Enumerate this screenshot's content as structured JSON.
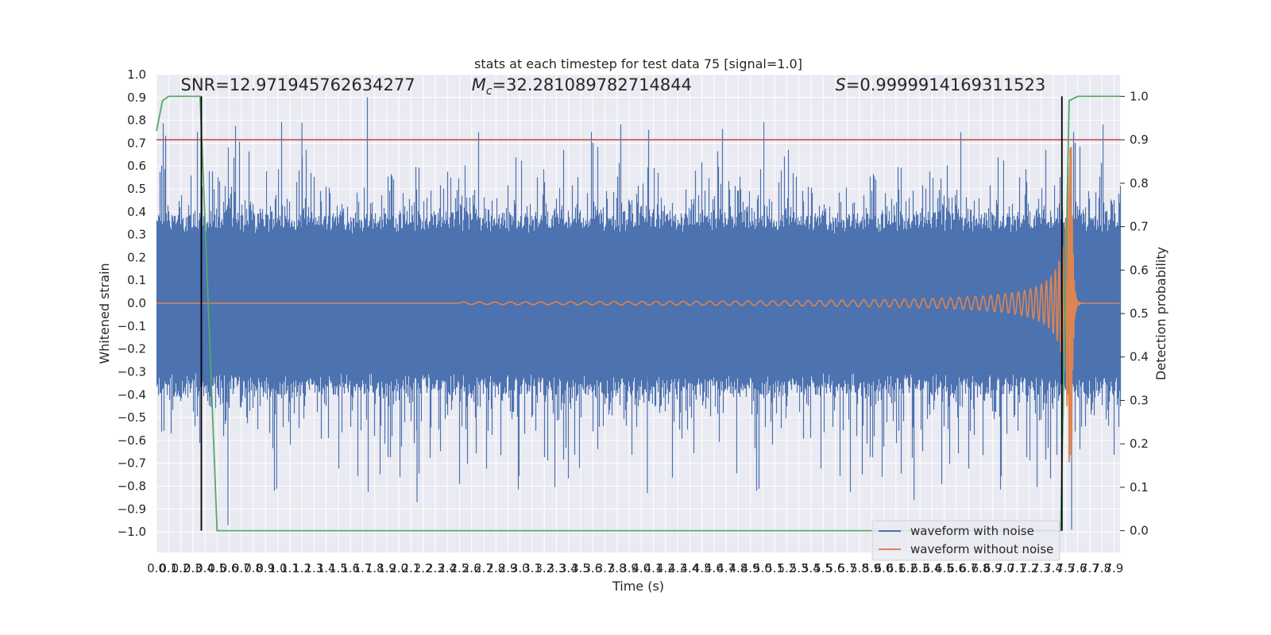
{
  "chart_data": {
    "type": "line",
    "title": "stats at each timestep for test data 75 [signal=1.0]",
    "xlabel": "Time (s)",
    "ylabel": "Whitened strain",
    "y2label": "Detection probability",
    "xlim": [
      0.0,
      7.95
    ],
    "ylim": [
      -1.09,
      1.0
    ],
    "y2lim": [
      -0.05,
      1.05
    ],
    "x_ticks": [
      0.0,
      0.1,
      0.2,
      0.3,
      0.4,
      0.5,
      0.6,
      0.7,
      0.8,
      0.9,
      1.0,
      1.1,
      1.2,
      1.3,
      1.4,
      1.5,
      1.6,
      1.7,
      1.8,
      1.9,
      2.0,
      2.1,
      2.2,
      2.3,
      2.4,
      2.5,
      2.6,
      2.7,
      2.8,
      2.9,
      3.0,
      3.1,
      3.2,
      3.3,
      3.4,
      3.5,
      3.6,
      3.7,
      3.8,
      3.9,
      4.0,
      4.1,
      4.2,
      4.3,
      4.4,
      4.5,
      4.6,
      4.7,
      4.8,
      4.9,
      5.0,
      5.1,
      5.2,
      5.3,
      5.4,
      5.5,
      5.6,
      5.7,
      5.8,
      5.9,
      6.0,
      6.1,
      6.2,
      6.3,
      6.4,
      6.5,
      6.6,
      6.7,
      6.8,
      6.9,
      7.0,
      7.1,
      7.2,
      7.3,
      7.4,
      7.5,
      7.6,
      7.7,
      7.8,
      7.9
    ],
    "x_tick_labels": [
      "0.0",
      "0.1",
      "0.2",
      "0.3",
      "0.4",
      "0.5",
      "0.6",
      "0.7",
      "0.8",
      "0.9",
      "1.0",
      "1.1",
      "1.2",
      "1.3",
      "1.4",
      "1.5",
      "1.6",
      "1.7",
      "1.8",
      "1.9",
      "2.0",
      "2.1",
      "2.2",
      "2.3",
      "2.4",
      "2.5",
      "2.6",
      "2.7",
      "2.8",
      "2.9",
      "3.0",
      "3.1",
      "3.2",
      "3.3",
      "3.4",
      "3.5",
      "3.6",
      "3.7",
      "3.8",
      "3.9",
      "4.0",
      "4.1",
      "4.2",
      "4.3",
      "4.4",
      "4.5",
      "4.6",
      "4.7",
      "4.8",
      "4.9",
      "5.0",
      "5.1",
      "5.2",
      "5.3",
      "5.4",
      "5.5",
      "5.6",
      "5.7",
      "5.8",
      "5.9",
      "6.0",
      "6.1",
      "6.2",
      "6.3",
      "6.4",
      "6.5",
      "6.6",
      "6.7",
      "6.8",
      "6.9",
      "7.0",
      "7.1",
      "7.2",
      "7.3",
      "7.4",
      "7.5",
      "7.6",
      "7.7",
      "7.8",
      "7.9"
    ],
    "y_ticks": [
      1.0,
      0.9,
      0.8,
      0.7,
      0.6,
      0.5,
      0.4,
      0.3,
      0.2,
      0.1,
      0.0,
      -0.1,
      -0.2,
      -0.3,
      -0.4,
      -0.5,
      -0.6,
      -0.7,
      -0.8,
      -0.9,
      -1.0
    ],
    "y_tick_labels": [
      "1.0",
      "0.9",
      "0.8",
      "0.7",
      "0.6",
      "0.5",
      "0.4",
      "0.3",
      "0.2",
      "0.1",
      "0.0",
      "−0.1",
      "−0.2",
      "−0.3",
      "−0.4",
      "−0.5",
      "−0.6",
      "−0.7",
      "−0.8",
      "−0.9",
      "−1.0"
    ],
    "y2_ticks": [
      1.0,
      0.9,
      0.8,
      0.7,
      0.6,
      0.5,
      0.4,
      0.3,
      0.2,
      0.1,
      0.0
    ],
    "y2_tick_labels": [
      "1.0",
      "0.9",
      "0.8",
      "0.7",
      "0.6",
      "0.5",
      "0.4",
      "0.3",
      "0.2",
      "0.1",
      "0.0"
    ],
    "annotations": [
      {
        "text": "SNR=12.971945762634277",
        "x": 0.2,
        "y": 0.93
      },
      {
        "text_prefix": "M",
        "text_subscript": "c",
        "text_suffix": "=32.281089782714844",
        "x": 2.6,
        "y": 0.93
      },
      {
        "text_prefix": "S",
        "text_suffix": "=0.9999914169311523",
        "x": 5.6,
        "y": 0.93
      }
    ],
    "threshold_y2": 0.9,
    "vertical_lines_x": [
      0.37,
      7.47
    ],
    "noisy_waveform": {
      "name": "waveform with noise",
      "color": "#4c72b0",
      "typical_amplitude": 0.33,
      "peak_max": 0.9,
      "peak_min": -0.97,
      "sample_rate": 2048
    },
    "clean_waveform": {
      "name": "waveform without noise",
      "color": "#dd8452",
      "chirp_start_x": 2.5,
      "merger_x": 7.55,
      "peak_amplitude": 0.72
    },
    "probability": {
      "color": "#55a868",
      "points": [
        [
          0.0,
          0.92
        ],
        [
          0.05,
          0.99
        ],
        [
          0.1,
          1.0
        ],
        [
          0.36,
          1.0
        ],
        [
          0.5,
          0.0
        ],
        [
          7.46,
          0.0
        ],
        [
          7.53,
          0.99
        ],
        [
          7.6,
          1.0
        ],
        [
          7.95,
          1.0
        ]
      ]
    },
    "threshold_color": "#c44e52",
    "legend": {
      "placement": "lower-right",
      "entries": [
        {
          "label": "waveform with noise",
          "color": "#4c72b0"
        },
        {
          "label": "waveform without noise",
          "color": "#dd8452"
        }
      ]
    },
    "grid": true
  }
}
